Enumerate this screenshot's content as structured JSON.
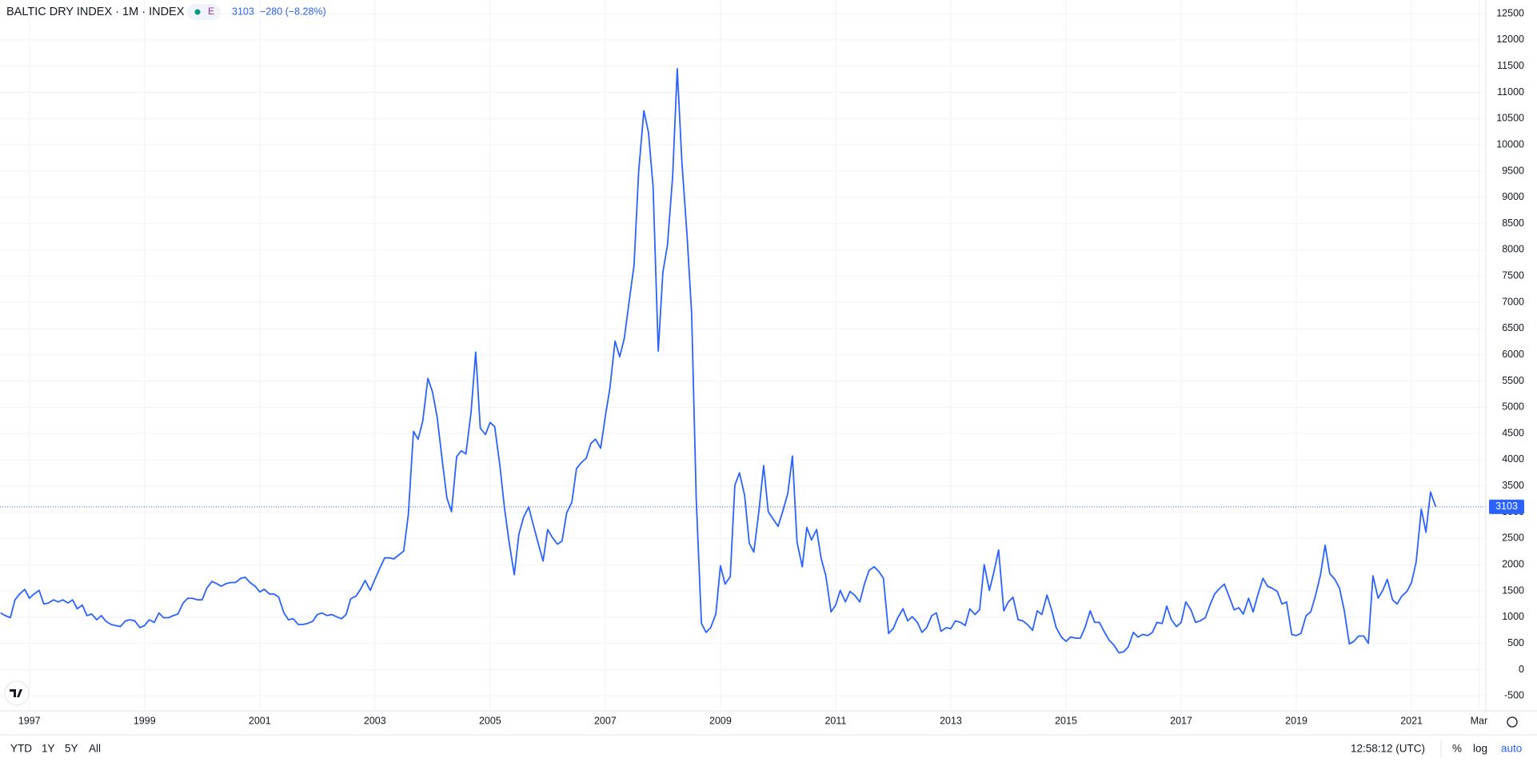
{
  "chart_data": {
    "type": "line",
    "title": "BALTIC DRY INDEX · 1M · INDEX",
    "exchange_badge": "E",
    "last_price": 3103,
    "change_label": "−280 (−8.28%)",
    "color": "#2962ff",
    "grid": true,
    "log_scale": false,
    "x": [
      1996.5,
      1996.58,
      1996.67,
      1996.75,
      1996.83,
      1996.92,
      1997.0,
      1997.08,
      1997.17,
      1997.25,
      1997.33,
      1997.42,
      1997.5,
      1997.58,
      1997.67,
      1997.75,
      1997.83,
      1997.92,
      1998.0,
      1998.08,
      1998.17,
      1998.25,
      1998.33,
      1998.42,
      1998.5,
      1998.58,
      1998.67,
      1998.75,
      1998.83,
      1998.92,
      1999.0,
      1999.08,
      1999.17,
      1999.25,
      1999.33,
      1999.42,
      1999.5,
      1999.58,
      1999.67,
      1999.75,
      1999.83,
      1999.92,
      2000.0,
      2000.08,
      2000.17,
      2000.25,
      2000.33,
      2000.42,
      2000.5,
      2000.58,
      2000.67,
      2000.75,
      2000.83,
      2000.92,
      2001.0,
      2001.08,
      2001.17,
      2001.25,
      2001.33,
      2001.42,
      2001.5,
      2001.58,
      2001.67,
      2001.75,
      2001.83,
      2001.92,
      2002.0,
      2002.08,
      2002.17,
      2002.25,
      2002.33,
      2002.42,
      2002.5,
      2002.58,
      2002.67,
      2002.75,
      2002.83,
      2002.92,
      2003.0,
      2003.08,
      2003.17,
      2003.25,
      2003.33,
      2003.42,
      2003.5,
      2003.58,
      2003.67,
      2003.75,
      2003.83,
      2003.92,
      2004.0,
      2004.08,
      2004.17,
      2004.25,
      2004.33,
      2004.42,
      2004.5,
      2004.58,
      2004.67,
      2004.75,
      2004.83,
      2004.92,
      2005.0,
      2005.08,
      2005.17,
      2005.25,
      2005.33,
      2005.42,
      2005.5,
      2005.58,
      2005.67,
      2005.75,
      2005.83,
      2005.92,
      2006.0,
      2006.08,
      2006.17,
      2006.25,
      2006.33,
      2006.42,
      2006.5,
      2006.58,
      2006.67,
      2006.75,
      2006.83,
      2006.92,
      2007.0,
      2007.08,
      2007.17,
      2007.25,
      2007.33,
      2007.42,
      2007.5,
      2007.58,
      2007.67,
      2007.75,
      2007.83,
      2007.92,
      2008.0,
      2008.08,
      2008.17,
      2008.25,
      2008.33,
      2008.42,
      2008.5,
      2008.58,
      2008.67,
      2008.75,
      2008.83,
      2008.92,
      2009.0,
      2009.08,
      2009.17,
      2009.25,
      2009.33,
      2009.42,
      2009.5,
      2009.58,
      2009.67,
      2009.75,
      2009.83,
      2009.92,
      2010.0,
      2010.08,
      2010.17,
      2010.25,
      2010.33,
      2010.42,
      2010.5,
      2010.58,
      2010.67,
      2010.75,
      2010.83,
      2010.92,
      2011.0,
      2011.08,
      2011.17,
      2011.25,
      2011.33,
      2011.42,
      2011.5,
      2011.58,
      2011.67,
      2011.75,
      2011.83,
      2011.92,
      2012.0,
      2012.08,
      2012.17,
      2012.25,
      2012.33,
      2012.42,
      2012.5,
      2012.58,
      2012.67,
      2012.75,
      2012.83,
      2012.92,
      2013.0,
      2013.08,
      2013.17,
      2013.25,
      2013.33,
      2013.42,
      2013.5,
      2013.58,
      2013.67,
      2013.75,
      2013.83,
      2013.92,
      2014.0,
      2014.08,
      2014.17,
      2014.25,
      2014.33,
      2014.42,
      2014.5,
      2014.58,
      2014.67,
      2014.75,
      2014.83,
      2014.92,
      2015.0,
      2015.08,
      2015.17,
      2015.25,
      2015.33,
      2015.42,
      2015.5,
      2015.58,
      2015.67,
      2015.75,
      2015.83,
      2015.92,
      2016.0,
      2016.08,
      2016.17,
      2016.25,
      2016.33,
      2016.42,
      2016.5,
      2016.58,
      2016.67,
      2016.75,
      2016.83,
      2016.92,
      2017.0,
      2017.08,
      2017.17,
      2017.25,
      2017.33,
      2017.42,
      2017.5,
      2017.58,
      2017.67,
      2017.75,
      2017.83,
      2017.92,
      2018.0,
      2018.08,
      2018.17,
      2018.25,
      2018.33,
      2018.42,
      2018.5,
      2018.58,
      2018.67,
      2018.75,
      2018.83,
      2018.92,
      2019.0,
      2019.08,
      2019.17,
      2019.25,
      2019.33,
      2019.42,
      2019.5,
      2019.58,
      2019.67,
      2019.75,
      2019.83,
      2019.92,
      2020.0,
      2020.08,
      2020.17,
      2020.25,
      2020.33,
      2020.42,
      2020.5,
      2020.58,
      2020.67,
      2020.75,
      2020.83,
      2020.92,
      2021.0,
      2021.08,
      2021.17,
      2021.25,
      2021.33,
      2021.42
    ],
    "values": [
      1080,
      1030,
      990,
      1330,
      1440,
      1530,
      1360,
      1440,
      1510,
      1250,
      1270,
      1330,
      1290,
      1330,
      1270,
      1330,
      1160,
      1230,
      1030,
      1060,
      950,
      1030,
      920,
      860,
      840,
      820,
      930,
      950,
      930,
      800,
      840,
      950,
      900,
      1080,
      990,
      990,
      1030,
      1060,
      1270,
      1360,
      1360,
      1330,
      1330,
      1550,
      1680,
      1640,
      1590,
      1640,
      1660,
      1660,
      1740,
      1760,
      1660,
      1590,
      1480,
      1530,
      1440,
      1440,
      1380,
      1080,
      950,
      970,
      860,
      860,
      880,
      920,
      1050,
      1080,
      1030,
      1050,
      1010,
      970,
      1050,
      1350,
      1400,
      1530,
      1700,
      1510,
      1720,
      1920,
      2130,
      2130,
      2110,
      2190,
      2260,
      2950,
      4540,
      4390,
      4730,
      5550,
      5290,
      4820,
      3980,
      3270,
      3010,
      4060,
      4170,
      4110,
      4910,
      6050,
      4600,
      4480,
      4710,
      4630,
      3890,
      3080,
      2430,
      1810,
      2580,
      2900,
      3100,
      2760,
      2430,
      2070,
      2670,
      2520,
      2390,
      2450,
      2990,
      3190,
      3830,
      3940,
      4030,
      4310,
      4390,
      4220,
      4820,
      5360,
      6260,
      5960,
      6310,
      7060,
      7710,
      9490,
      10650,
      10240,
      9210,
      6070,
      7570,
      8090,
      9400,
      11450,
      9680,
      8280,
      6780,
      3230,
      880,
      710,
      800,
      1060,
      1980,
      1630,
      1770,
      3510,
      3750,
      3320,
      2410,
      2240,
      3040,
      3890,
      3010,
      2860,
      2730,
      3010,
      3360,
      4070,
      2430,
      1960,
      2710,
      2470,
      2670,
      2110,
      1790,
      1100,
      1230,
      1510,
      1290,
      1490,
      1420,
      1290,
      1630,
      1890,
      1960,
      1870,
      1740,
      690,
      780,
      990,
      1160,
      930,
      1010,
      900,
      710,
      800,
      1030,
      1080,
      730,
      800,
      780,
      930,
      900,
      840,
      1160,
      1050,
      1140,
      2000,
      1510,
      1870,
      2280,
      1120,
      1290,
      1380,
      950,
      930,
      860,
      750,
      1120,
      1050,
      1420,
      1140,
      800,
      620,
      540,
      620,
      600,
      600,
      800,
      1120,
      900,
      900,
      710,
      560,
      470,
      320,
      340,
      430,
      710,
      620,
      670,
      650,
      710,
      900,
      880,
      1210,
      950,
      820,
      900,
      1290,
      1140,
      900,
      930,
      990,
      1230,
      1440,
      1550,
      1630,
      1400,
      1140,
      1180,
      1060,
      1360,
      1100,
      1420,
      1740,
      1590,
      1550,
      1490,
      1250,
      1290,
      670,
      650,
      690,
      1030,
      1100,
      1400,
      1810,
      2370,
      1830,
      1720,
      1550,
      1140,
      490,
      540,
      640,
      640,
      500,
      1790,
      1360,
      1510,
      1720,
      1330,
      1250,
      1400,
      1490,
      1660,
      2050,
      3060,
      2620,
      3383,
      3103
    ],
    "xlim": [
      1996.49,
      2022.29
    ],
    "xticks": [
      1997,
      1999,
      2001,
      2003,
      2005,
      2007,
      2009,
      2011,
      2013,
      2015,
      2017,
      2019,
      2021,
      {
        "value": 2022.17,
        "label": "Mar"
      }
    ],
    "ylim": [
      -785,
      12760
    ],
    "yticks": [
      -500,
      0,
      500,
      1000,
      1500,
      2000,
      2500,
      3000,
      3500,
      4000,
      4500,
      5000,
      5500,
      6000,
      6500,
      7000,
      7500,
      8000,
      8500,
      9000,
      9500,
      10000,
      10500,
      11000,
      11500,
      12000,
      12500
    ]
  },
  "toolbar": {
    "ranges": [
      "YTD",
      "1Y",
      "5Y",
      "All"
    ],
    "time": "12:58:12 (UTC)",
    "scale_options": [
      "%",
      "log",
      "auto"
    ]
  }
}
